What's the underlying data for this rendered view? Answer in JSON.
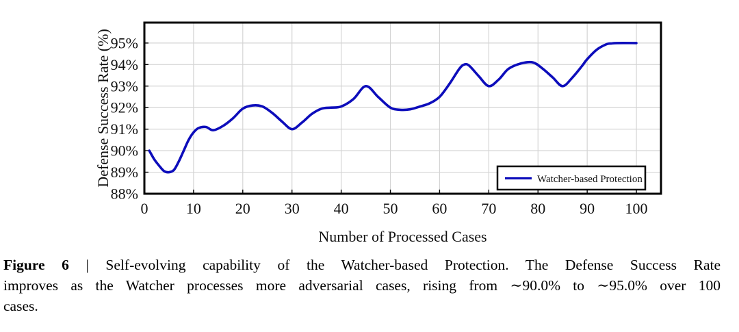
{
  "caption": {
    "label": "Figure 6",
    "line1_rest": "| Self-evolving capability of the Watcher-based Protection.  The Defense Success Rate",
    "line2": "improves as the Watcher processes more adversarial cases, rising from ∼90.0% to ∼95.0% over 100",
    "line3": "cases."
  },
  "chart_data": {
    "type": "line",
    "title": "",
    "xlabel": "Number of Processed Cases",
    "ylabel": "Defense Success Rate (%)",
    "xlim": [
      0,
      105
    ],
    "ylim": [
      88,
      95.95
    ],
    "x_ticks": [
      0,
      10,
      20,
      30,
      40,
      50,
      60,
      70,
      80,
      90,
      100
    ],
    "y_ticks": [
      88,
      89,
      90,
      91,
      92,
      93,
      94,
      95
    ],
    "y_tick_suffix": "%",
    "grid": true,
    "legend": {
      "position": "lower right",
      "border": true
    },
    "series": [
      {
        "name": "Watcher-based Protection",
        "color": "#0d0dbb",
        "x": [
          1,
          2,
          3,
          4,
          5,
          6,
          7,
          8,
          9,
          10,
          11,
          12.5,
          14,
          16,
          18,
          20,
          22,
          24,
          26,
          28,
          30,
          32,
          34,
          36,
          38,
          40,
          42.5,
          45,
          47.5,
          50,
          52,
          54,
          56,
          58,
          60,
          62,
          64,
          65,
          66,
          68,
          70,
          72,
          74,
          76.5,
          79,
          81,
          83,
          85,
          87,
          89,
          90,
          92,
          94,
          95,
          96,
          100
        ],
        "y": [
          90,
          89.6,
          89.3,
          89.05,
          89,
          89.1,
          89.5,
          90,
          90.5,
          90.85,
          91.05,
          91.1,
          90.95,
          91.15,
          91.5,
          91.95,
          92.1,
          92.05,
          91.75,
          91.35,
          91,
          91.3,
          91.7,
          91.95,
          92,
          92.05,
          92.4,
          93,
          92.5,
          92,
          91.9,
          91.92,
          92.05,
          92.2,
          92.5,
          93.1,
          93.8,
          94,
          93.95,
          93.45,
          93,
          93.3,
          93.8,
          94.05,
          94.1,
          93.8,
          93.4,
          93,
          93.4,
          93.95,
          94.25,
          94.7,
          94.95,
          94.98,
          95,
          95
        ]
      }
    ]
  },
  "colors": {
    "line": "#0d0dbb",
    "grid": "#d4d4d4",
    "frame": "#000000",
    "text": "#111111",
    "background": "#ffffff",
    "legend_fill": "#ffffff"
  }
}
